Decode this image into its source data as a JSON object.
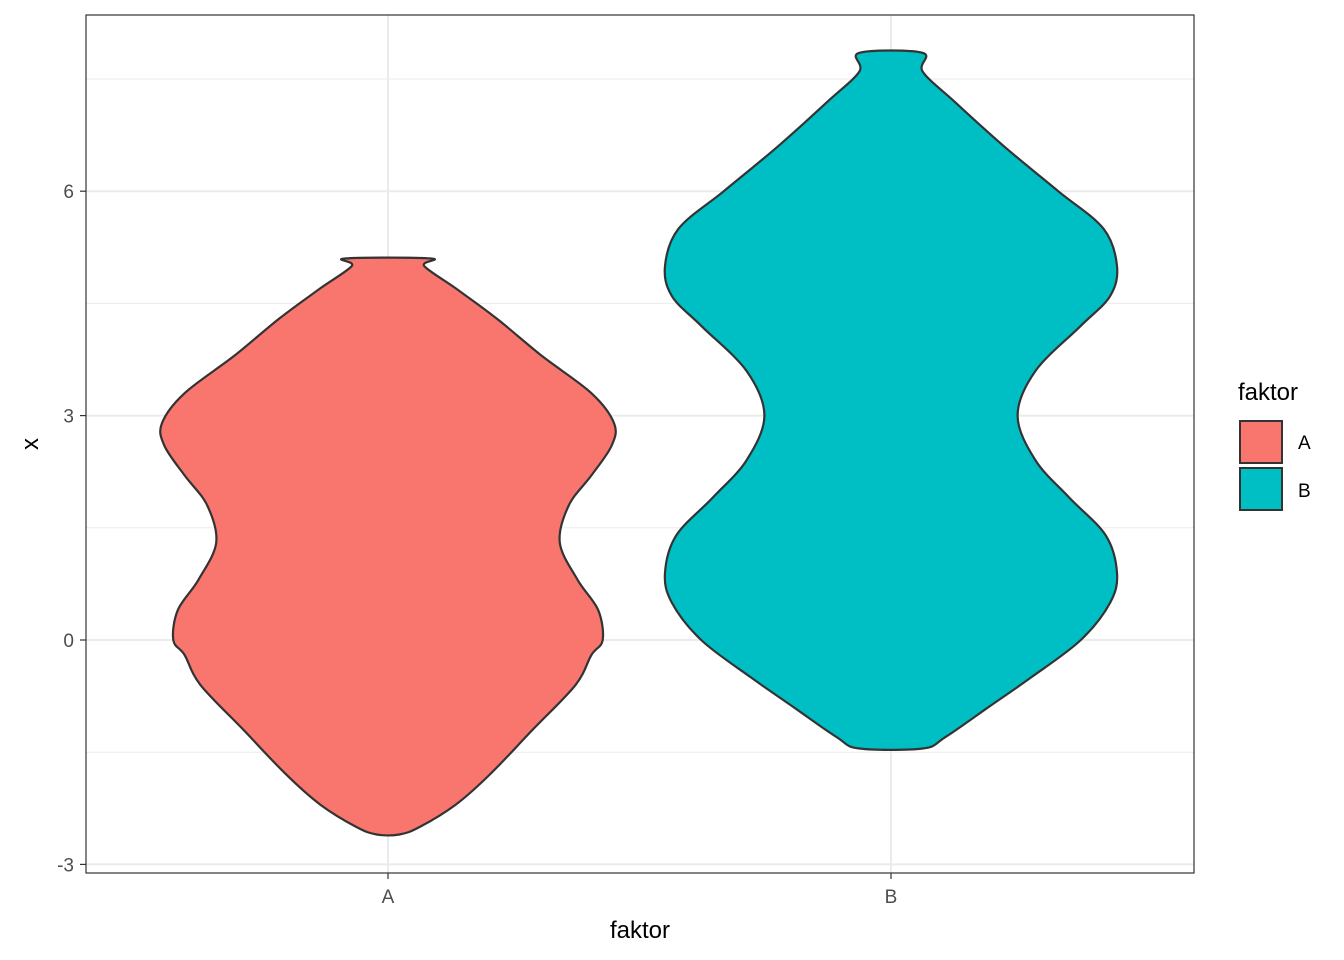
{
  "chart_data": {
    "type": "violin",
    "xlabel": "faktor",
    "ylabel": "x",
    "ylim": [
      -3.1,
      8.4
    ],
    "yticks": [
      -3,
      0,
      3,
      6
    ],
    "y_minor_ticks": [
      -1.5,
      1.5,
      4.5,
      7.5
    ],
    "grid": true,
    "legend": {
      "title": "faktor",
      "position": "right",
      "entries": [
        {
          "label": "A",
          "color": "#F8766D"
        },
        {
          "label": "B",
          "color": "#00BFC4"
        }
      ]
    },
    "categories": [
      "A",
      "B"
    ],
    "series": [
      {
        "name": "A",
        "color": "#F8766D",
        "profile": [
          [
            -2.6,
            0.05
          ],
          [
            -2.5,
            0.14
          ],
          [
            -2.2,
            0.3
          ],
          [
            -1.8,
            0.45
          ],
          [
            -1.2,
            0.64
          ],
          [
            -0.6,
            0.83
          ],
          [
            -0.2,
            0.9
          ],
          [
            0.0,
            0.95
          ],
          [
            0.4,
            0.93
          ],
          [
            0.8,
            0.84
          ],
          [
            1.3,
            0.76
          ],
          [
            1.8,
            0.8
          ],
          [
            2.2,
            0.9
          ],
          [
            2.6,
            0.99
          ],
          [
            2.9,
            1.0
          ],
          [
            3.3,
            0.9
          ],
          [
            3.8,
            0.68
          ],
          [
            4.3,
            0.48
          ],
          [
            4.7,
            0.3
          ],
          [
            5.0,
            0.16
          ],
          [
            5.1,
            0.19
          ]
        ]
      },
      {
        "name": "B",
        "color": "#00BFC4",
        "profile": [
          [
            -1.45,
            0.14
          ],
          [
            -1.3,
            0.24
          ],
          [
            -0.9,
            0.43
          ],
          [
            -0.5,
            0.62
          ],
          [
            0.0,
            0.84
          ],
          [
            0.5,
            0.97
          ],
          [
            0.9,
            1.0
          ],
          [
            1.4,
            0.95
          ],
          [
            1.9,
            0.79
          ],
          [
            2.4,
            0.64
          ],
          [
            3.0,
            0.56
          ],
          [
            3.6,
            0.64
          ],
          [
            4.2,
            0.84
          ],
          [
            4.6,
            0.97
          ],
          [
            5.0,
            1.0
          ],
          [
            5.5,
            0.94
          ],
          [
            6.0,
            0.74
          ],
          [
            6.6,
            0.5
          ],
          [
            7.2,
            0.28
          ],
          [
            7.6,
            0.14
          ],
          [
            7.85,
            0.14
          ]
        ]
      }
    ]
  }
}
